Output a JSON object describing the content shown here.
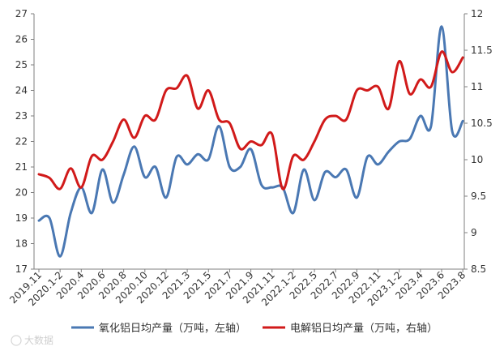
{
  "chart_data": {
    "type": "line",
    "title": "",
    "xlabel": "",
    "ylabel": "",
    "y_left_lim": [
      17,
      27
    ],
    "y_left_ticks": [
      17,
      18,
      19,
      20,
      21,
      22,
      23,
      24,
      25,
      26,
      27
    ],
    "y_right_lim": [
      8.5,
      12
    ],
    "y_right_ticks": [
      "8.5",
      "9",
      "9.5",
      "10",
      "10.5",
      "11",
      "11.5",
      "12"
    ],
    "grid": false,
    "legend_position": "bottom",
    "x_tick_labels": [
      "2019.11",
      "2020.1-2",
      "2020.4",
      "2020.6",
      "2020.8",
      "2020.10",
      "2020.12",
      "2021.3",
      "2021.5",
      "2021.7",
      "2021.9",
      "2021.11",
      "2022.1-2",
      "2022.5",
      "2022.7",
      "2022.9",
      "2022.11",
      "2023.1-2",
      "2023.4",
      "2023.6",
      "2023.8"
    ],
    "series": [
      {
        "name": "氧化铝日均产量（万吨，左轴）",
        "axis": "left",
        "color": "#4a78b3",
        "values": [
          18.9,
          19.0,
          17.5,
          19.2,
          20.2,
          19.2,
          20.9,
          19.6,
          20.7,
          21.8,
          20.6,
          21.0,
          19.8,
          21.4,
          21.1,
          21.5,
          21.3,
          22.6,
          21.0,
          21.0,
          21.7,
          20.3,
          20.2,
          20.2,
          19.2,
          20.9,
          19.7,
          20.8,
          20.6,
          20.9,
          19.8,
          21.4,
          21.1,
          21.6,
          22.0,
          22.1,
          23.0,
          22.6,
          26.5,
          22.4,
          22.8
        ]
      },
      {
        "name": "电解铝日均产量（万吨，右轴）",
        "axis": "right",
        "color": "#d11a1a",
        "values": [
          9.8,
          9.75,
          9.6,
          9.88,
          9.62,
          10.05,
          10.0,
          10.25,
          10.55,
          10.3,
          10.6,
          10.55,
          10.95,
          10.98,
          11.15,
          10.7,
          10.95,
          10.55,
          10.5,
          10.15,
          10.25,
          10.2,
          10.35,
          9.6,
          10.05,
          10.0,
          10.25,
          10.55,
          10.6,
          10.55,
          10.95,
          10.95,
          11.0,
          10.7,
          11.35,
          10.9,
          11.1,
          11.0,
          11.48,
          11.2,
          11.4
        ]
      }
    ]
  },
  "watermark": "大数据"
}
